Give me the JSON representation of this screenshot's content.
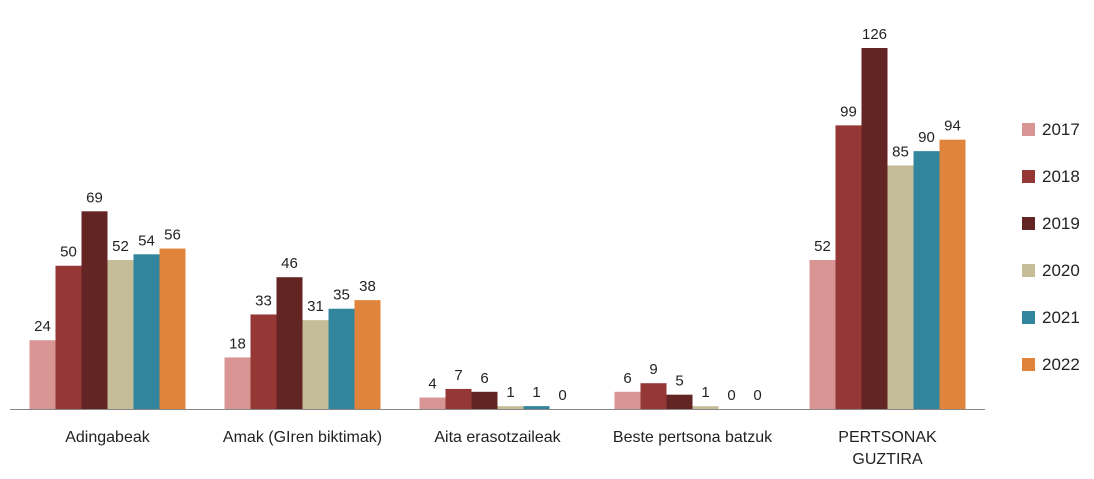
{
  "chart_data": {
    "type": "bar",
    "categories": [
      "Adingabeak",
      "Amak (GIren biktimak)",
      "Aita erasotzaileak",
      "Beste pertsona batzuk",
      "PERTSONAK GUZTIRA"
    ],
    "series": [
      {
        "name": "2017",
        "color": "#d99594",
        "values": [
          24,
          18,
          4,
          6,
          52
        ]
      },
      {
        "name": "2018",
        "color": "#953735",
        "values": [
          50,
          33,
          7,
          9,
          99
        ]
      },
      {
        "name": "2019",
        "color": "#632523",
        "values": [
          69,
          46,
          6,
          5,
          126
        ]
      },
      {
        "name": "2020",
        "color": "#c4bd97",
        "values": [
          52,
          31,
          1,
          1,
          85
        ]
      },
      {
        "name": "2021",
        "color": "#31859c",
        "values": [
          54,
          35,
          1,
          0,
          90
        ]
      },
      {
        "name": "2022",
        "color": "#e0843c",
        "values": [
          56,
          38,
          0,
          0,
          94
        ]
      }
    ],
    "legend": "right"
  }
}
